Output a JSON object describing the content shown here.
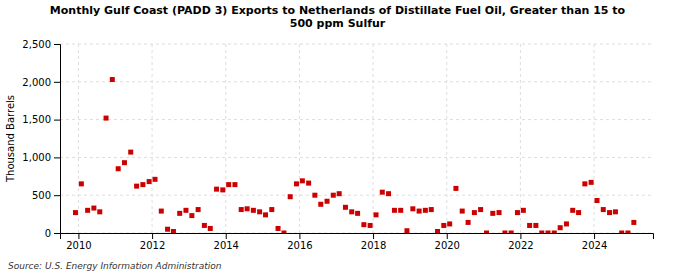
{
  "chart_data": {
    "type": "scatter",
    "title": "Monthly Gulf Coast (PADD 3) Exports to Netherlands of Distillate Fuel Oil, Greater than 15 to\n500 ppm Sulfur",
    "ylabel": "Thousand Barrels",
    "source": "Source: U.S. Energy Information Administration",
    "color": "#cc0000",
    "marker": "square",
    "grid": true,
    "xlim": [
      2009.5,
      2025.6
    ],
    "xticks": [
      2010,
      2012,
      2014,
      2016,
      2018,
      2020,
      2022,
      2024
    ],
    "ylim": [
      0,
      2500
    ],
    "yticks": [
      0,
      500,
      {
        "value": 1000,
        "label": "1,000"
      },
      {
        "value": 1500,
        "label": "1,500"
      },
      {
        "value": 2000,
        "label": "2,000"
      },
      {
        "value": 2500,
        "label": "2,500"
      }
    ],
    "x": [
      2009.92,
      2010.08,
      2010.25,
      2010.42,
      2010.58,
      2010.75,
      2010.92,
      2011.08,
      2011.25,
      2011.42,
      2011.58,
      2011.75,
      2011.92,
      2012.08,
      2012.25,
      2012.42,
      2012.58,
      2012.75,
      2012.92,
      2013.08,
      2013.25,
      2013.42,
      2013.58,
      2013.75,
      2013.92,
      2014.08,
      2014.25,
      2014.42,
      2014.58,
      2014.75,
      2014.92,
      2015.08,
      2015.25,
      2015.42,
      2015.58,
      2015.75,
      2015.92,
      2016.08,
      2016.25,
      2016.42,
      2016.58,
      2016.75,
      2016.92,
      2017.08,
      2017.25,
      2017.42,
      2017.58,
      2017.75,
      2017.92,
      2018.08,
      2018.25,
      2018.42,
      2018.58,
      2018.75,
      2018.92,
      2019.08,
      2019.25,
      2019.42,
      2019.58,
      2019.75,
      2019.92,
      2020.08,
      2020.25,
      2020.42,
      2020.58,
      2020.75,
      2020.92,
      2021.08,
      2021.25,
      2021.42,
      2021.58,
      2021.75,
      2021.92,
      2022.08,
      2022.25,
      2022.42,
      2022.58,
      2022.75,
      2022.92,
      2023.08,
      2023.25,
      2023.42,
      2023.58,
      2023.75,
      2023.92,
      2024.08,
      2024.25,
      2024.42,
      2024.58,
      2024.75,
      2024.92,
      2025.08
    ],
    "values": [
      270,
      650,
      300,
      330,
      280,
      1520,
      2030,
      850,
      930,
      1070,
      620,
      640,
      680,
      710,
      290,
      50,
      20,
      260,
      300,
      230,
      310,
      100,
      60,
      580,
      570,
      640,
      640,
      310,
      320,
      300,
      280,
      240,
      310,
      60,
      0,
      480,
      650,
      690,
      660,
      500,
      380,
      420,
      500,
      520,
      340,
      280,
      260,
      110,
      100,
      240,
      540,
      520,
      300,
      300,
      30,
      320,
      290,
      300,
      310,
      20,
      100,
      120,
      590,
      290,
      140,
      270,
      310,
      0,
      260,
      270,
      0,
      0,
      270,
      300,
      100,
      100,
      0,
      0,
      0,
      70,
      120,
      300,
      270,
      650,
      670,
      430,
      310,
      270,
      280,
      0,
      0,
      140
    ]
  }
}
